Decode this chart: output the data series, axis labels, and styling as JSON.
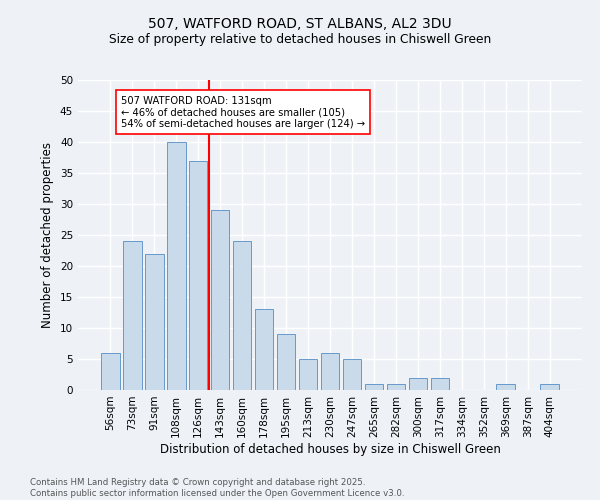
{
  "title1": "507, WATFORD ROAD, ST ALBANS, AL2 3DU",
  "title2": "Size of property relative to detached houses in Chiswell Green",
  "xlabel": "Distribution of detached houses by size in Chiswell Green",
  "ylabel": "Number of detached properties",
  "categories": [
    "56sqm",
    "73sqm",
    "91sqm",
    "108sqm",
    "126sqm",
    "143sqm",
    "160sqm",
    "178sqm",
    "195sqm",
    "213sqm",
    "230sqm",
    "247sqm",
    "265sqm",
    "282sqm",
    "300sqm",
    "317sqm",
    "334sqm",
    "352sqm",
    "369sqm",
    "387sqm",
    "404sqm"
  ],
  "values": [
    6,
    24,
    22,
    40,
    37,
    29,
    24,
    13,
    9,
    5,
    6,
    5,
    1,
    1,
    2,
    2,
    0,
    0,
    1,
    0,
    1
  ],
  "bar_color": "#c9daea",
  "bar_edge_color": "#6699cc",
  "red_line_x": 4.5,
  "ylim": [
    0,
    50
  ],
  "yticks": [
    0,
    5,
    10,
    15,
    20,
    25,
    30,
    35,
    40,
    45,
    50
  ],
  "annotation_title": "507 WATFORD ROAD: 131sqm",
  "annotation_line1": "← 46% of detached houses are smaller (105)",
  "annotation_line2": "54% of semi-detached houses are larger (124) →",
  "footer1": "Contains HM Land Registry data © Crown copyright and database right 2025.",
  "footer2": "Contains public sector information licensed under the Open Government Licence v3.0.",
  "background_color": "#eef2f7",
  "grid_color": "#ffffff"
}
